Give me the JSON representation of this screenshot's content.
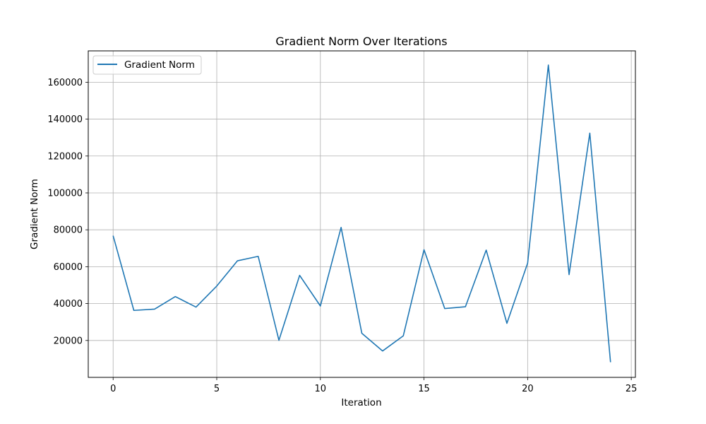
{
  "chart_data": {
    "type": "line",
    "title": "Gradient Norm Over Iterations",
    "xlabel": "Iteration",
    "ylabel": "Gradient Norm",
    "xlim": [
      -1.2,
      25.2
    ],
    "ylim": [
      0,
      177000
    ],
    "xticks": [
      0,
      5,
      10,
      15,
      20,
      25
    ],
    "xtick_labels": [
      "0",
      "5",
      "10",
      "15",
      "20",
      "25"
    ],
    "yticks": [
      20000,
      40000,
      60000,
      80000,
      100000,
      120000,
      140000,
      160000
    ],
    "ytick_labels": [
      "20000",
      "40000",
      "60000",
      "80000",
      "100000",
      "120000",
      "140000",
      "160000"
    ],
    "grid": true,
    "legend_position": "upper-left",
    "series": [
      {
        "name": "Gradient Norm",
        "color": "#1f77b4",
        "x": [
          0,
          1,
          2,
          3,
          4,
          5,
          6,
          7,
          8,
          9,
          10,
          11,
          12,
          13,
          14,
          15,
          16,
          17,
          18,
          19,
          20,
          21,
          22,
          23,
          24
        ],
        "y": [
          76800,
          36300,
          37000,
          43800,
          38100,
          49500,
          63200,
          65600,
          20100,
          55300,
          38700,
          81300,
          23900,
          14300,
          22500,
          69200,
          37300,
          38300,
          69000,
          29300,
          61900,
          169300,
          55700,
          132400,
          8200
        ]
      }
    ]
  }
}
